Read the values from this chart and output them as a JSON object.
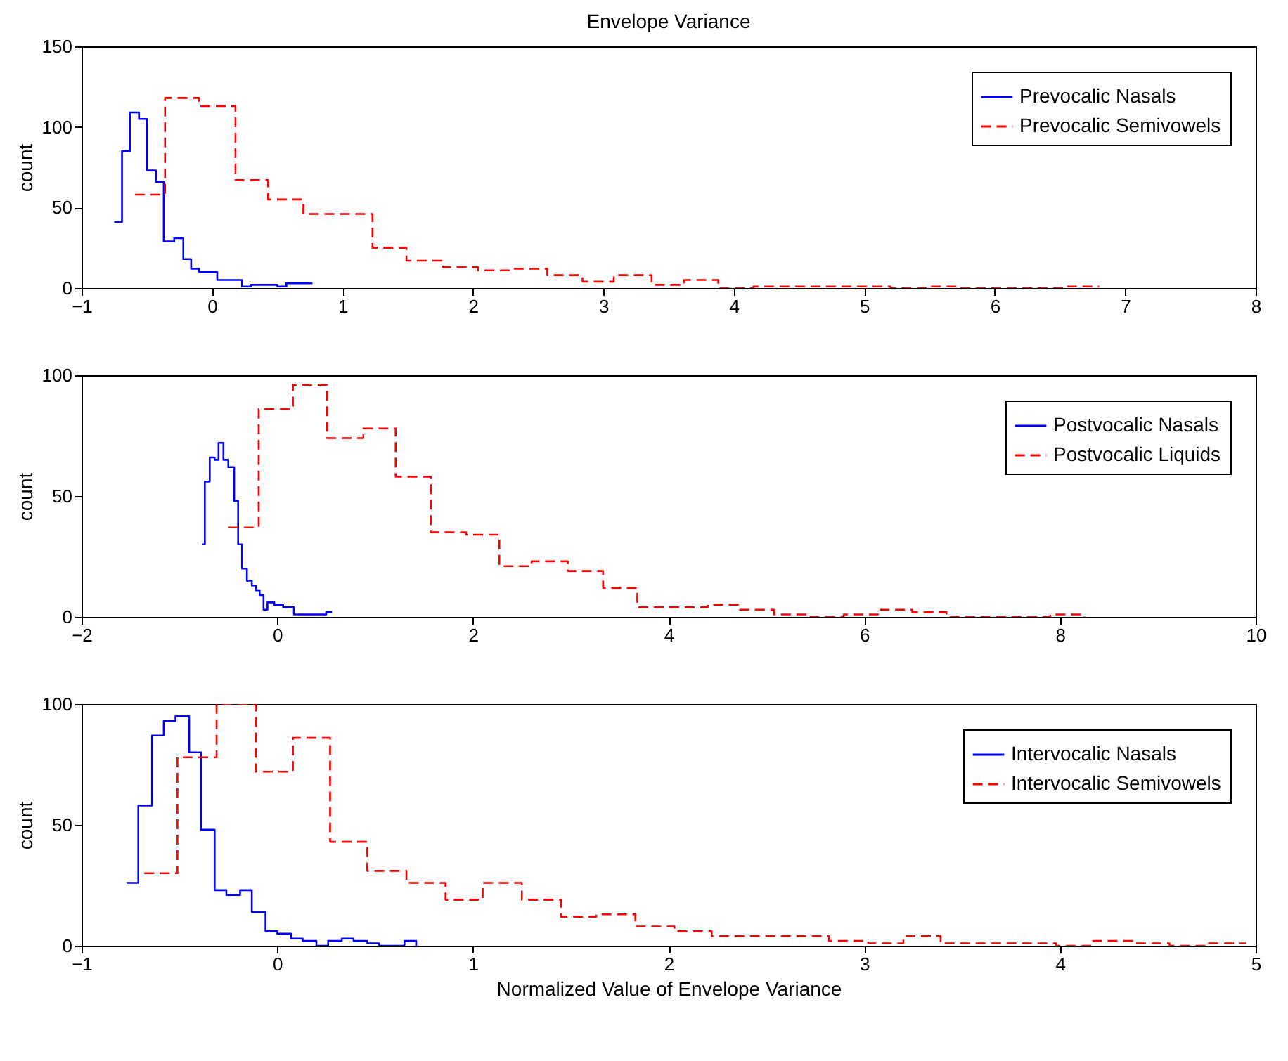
{
  "chart_data": [
    {
      "type": "step",
      "title": "Envelope Variance",
      "ylabel": "count",
      "xlim": [
        -1,
        8
      ],
      "xticks": [
        -1,
        0,
        1,
        2,
        3,
        4,
        5,
        6,
        7,
        8
      ],
      "ylim": [
        0,
        150
      ],
      "yticks": [
        0,
        50,
        100,
        150
      ],
      "grid": false,
      "legend": "top right",
      "series": [
        {
          "name": "Prevocalic Nasals",
          "color": "#0000ff",
          "line_style": "solid",
          "x": [
            -0.75,
            -0.69,
            -0.63,
            -0.56,
            -0.5,
            -0.43,
            -0.37,
            -0.29,
            -0.22,
            -0.16,
            -0.1,
            0.04,
            0.23,
            0.3,
            0.5,
            0.57,
            0.77
          ],
          "values": [
            41,
            85,
            109,
            105,
            73,
            66,
            29,
            31,
            18,
            12,
            10,
            5,
            1,
            2,
            1,
            3,
            3
          ]
        },
        {
          "name": "Prevocalic Semivowels",
          "color": "#ff0000",
          "line_style": "dashed",
          "x": [
            -0.59,
            -0.36,
            -0.1,
            0.18,
            0.43,
            0.7,
            1.23,
            1.49,
            1.77,
            2.04,
            2.3,
            2.57,
            2.84,
            3.08,
            3.37,
            3.62,
            3.88,
            4.15,
            5.2,
            5.47,
            5.73,
            6.54,
            6.8
          ],
          "values": [
            58,
            118,
            113,
            67,
            55,
            46,
            25,
            17,
            13,
            11,
            12,
            8,
            4,
            8,
            2,
            5,
            0,
            1,
            0,
            1,
            0,
            1,
            1
          ]
        }
      ]
    },
    {
      "type": "step",
      "ylabel": "count",
      "xlim": [
        -2,
        10
      ],
      "xticks": [
        -2,
        0,
        2,
        4,
        6,
        8,
        10
      ],
      "ylim": [
        0,
        100
      ],
      "yticks": [
        0,
        50,
        100
      ],
      "grid": false,
      "legend": "top right",
      "series": [
        {
          "name": "Postvocalic Nasals",
          "color": "#0000ff",
          "line_style": "solid",
          "x": [
            -0.77,
            -0.74,
            -0.69,
            -0.64,
            -0.6,
            -0.55,
            -0.5,
            -0.44,
            -0.4,
            -0.36,
            -0.31,
            -0.26,
            -0.22,
            -0.18,
            -0.14,
            -0.1,
            -0.03,
            0.06,
            0.17,
            0.5,
            0.56
          ],
          "values": [
            30,
            56,
            66,
            65,
            72,
            65,
            62,
            48,
            30,
            20,
            15,
            13,
            11,
            9,
            3,
            6,
            5,
            4,
            1,
            2,
            2
          ]
        },
        {
          "name": "Postvocalic Liquids",
          "color": "#ff0000",
          "line_style": "dashed",
          "x": [
            -0.5,
            -0.19,
            0.16,
            0.51,
            0.88,
            1.21,
            1.57,
            1.93,
            2.27,
            2.6,
            2.97,
            3.33,
            3.68,
            4.4,
            4.73,
            5.08,
            5.45,
            5.79,
            6.14,
            6.49,
            6.84,
            7.9,
            8.25
          ],
          "values": [
            37,
            86,
            96,
            74,
            78,
            58,
            35,
            34,
            21,
            23,
            19,
            12,
            4,
            5,
            3,
            1,
            0,
            1,
            3,
            2,
            0,
            1,
            0
          ]
        }
      ]
    },
    {
      "type": "step",
      "xlabel": "Normalized Value of Envelope Variance",
      "ylabel": "count",
      "xlim": [
        -1,
        5
      ],
      "xticks": [
        -1,
        0,
        1,
        2,
        3,
        4,
        5
      ],
      "ylim": [
        0,
        100
      ],
      "yticks": [
        0,
        50,
        100
      ],
      "grid": false,
      "legend": "top right",
      "series": [
        {
          "name": "Intervocalic Nasals",
          "color": "#0000ff",
          "line_style": "solid",
          "x": [
            -0.77,
            -0.71,
            -0.64,
            -0.58,
            -0.52,
            -0.45,
            -0.39,
            -0.32,
            -0.26,
            -0.19,
            -0.13,
            -0.06,
            0.0,
            0.07,
            0.13,
            0.2,
            0.26,
            0.33,
            0.39,
            0.46,
            0.52,
            0.65,
            0.71
          ],
          "values": [
            26,
            58,
            87,
            93,
            95,
            80,
            48,
            23,
            21,
            23,
            14,
            6,
            5,
            3,
            2,
            0,
            2,
            3,
            2,
            1,
            0,
            2,
            0
          ]
        },
        {
          "name": "Intervocalic Semivowels",
          "color": "#ff0000",
          "line_style": "dashed",
          "x": [
            -0.68,
            -0.51,
            -0.31,
            -0.11,
            0.08,
            0.27,
            0.46,
            0.66,
            0.86,
            1.05,
            1.25,
            1.45,
            1.63,
            1.83,
            2.03,
            2.22,
            2.82,
            3.02,
            3.2,
            3.39,
            3.98,
            4.17,
            4.37,
            4.56,
            4.76,
            4.95
          ],
          "values": [
            30,
            78,
            100,
            72,
            86,
            43,
            31,
            26,
            19,
            26,
            19,
            12,
            13,
            8,
            6,
            4,
            2,
            1,
            4,
            1,
            0,
            2,
            1,
            0,
            1,
            1
          ]
        }
      ]
    }
  ]
}
